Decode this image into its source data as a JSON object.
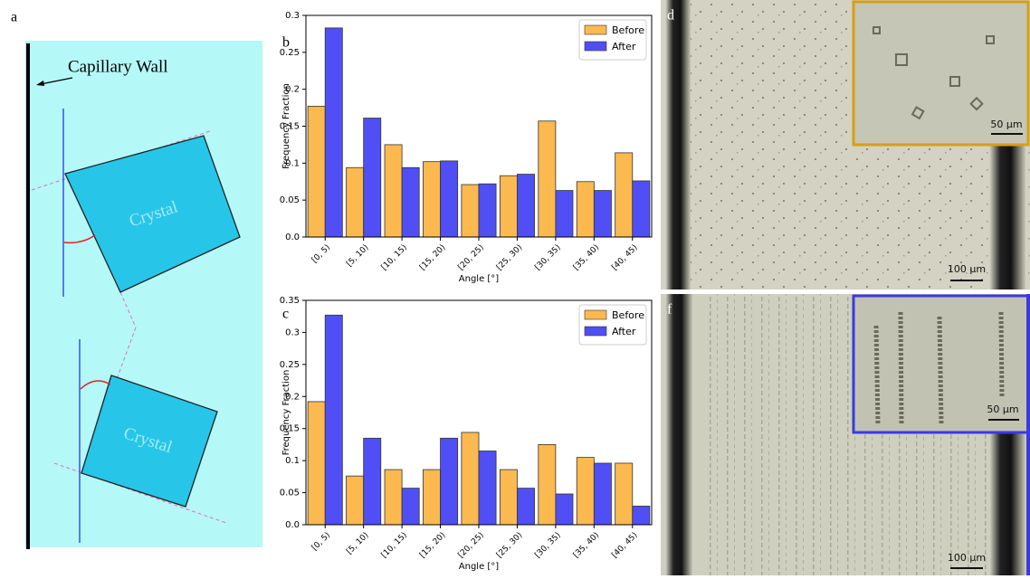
{
  "chart_data": [
    {
      "type": "bar",
      "label": "b",
      "xlabel": "Angle [°]",
      "ylabel": "Frequency Fraction",
      "categories": [
        "[0, 5)",
        "[5, 10)",
        "[10, 15)",
        "[15, 20)",
        "[20, 25)",
        "[25, 30)",
        "[30, 35)",
        "[35, 40)",
        "[40, 45)"
      ],
      "series": [
        {
          "name": "Before",
          "color": "#fbb94f",
          "values": [
            0.177,
            0.094,
            0.125,
            0.102,
            0.071,
            0.083,
            0.157,
            0.075,
            0.114
          ]
        },
        {
          "name": "After",
          "color": "#4f4ff5",
          "values": [
            0.283,
            0.161,
            0.094,
            0.103,
            0.072,
            0.085,
            0.063,
            0.063,
            0.076
          ]
        }
      ],
      "ylim": [
        0,
        0.3
      ],
      "yticks": [
        {
          "value": 0,
          "label": "0.0"
        },
        0.05,
        0.1,
        0.15,
        0.2,
        0.25,
        0.3
      ],
      "legend": "upper right"
    },
    {
      "type": "bar",
      "label": "c",
      "xlabel": "Angle [°]",
      "ylabel": "Frequency Fraction",
      "categories": [
        "[0, 5)",
        "[5, 10)",
        "[10, 15)",
        "[15, 20)",
        "[20, 25)",
        "[25, 30)",
        "[30, 35)",
        "[35, 40)",
        "[40, 45)"
      ],
      "series": [
        {
          "name": "Before",
          "color": "#fbb94f",
          "values": [
            0.192,
            0.076,
            0.086,
            0.086,
            0.144,
            0.086,
            0.125,
            0.105,
            0.096
          ]
        },
        {
          "name": "After",
          "color": "#4f4ff5",
          "values": [
            0.327,
            0.135,
            0.057,
            0.135,
            0.115,
            0.057,
            0.048,
            0.096,
            0.029
          ]
        }
      ],
      "ylim": [
        0,
        0.35
      ],
      "yticks": [
        {
          "value": 0,
          "label": "0.0"
        },
        0.05,
        0.1,
        0.15,
        0.2,
        0.25,
        0.3,
        0.35
      ],
      "legend": "upper right"
    }
  ],
  "diagram": {
    "label": "a",
    "wall_label": "Capillary Wall",
    "crystals": [
      "Crystal",
      "Crystal"
    ]
  },
  "images": [
    {
      "label": "d",
      "scale_bar": "100 µm",
      "inset_scale_bar": "50 µm"
    },
    {
      "label": "f",
      "scale_bar": "100 µm",
      "inset_scale_bar": "50 µm"
    }
  ]
}
